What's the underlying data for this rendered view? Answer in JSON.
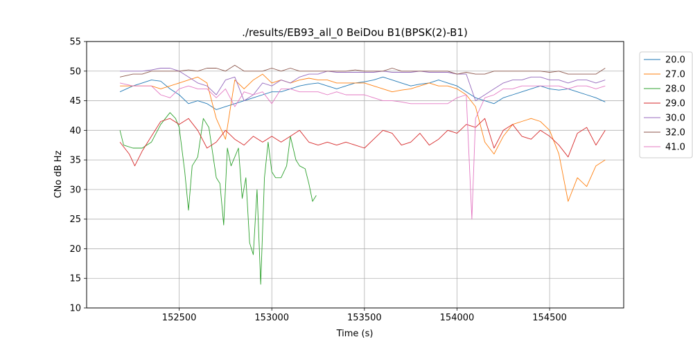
{
  "chart_data": {
    "type": "line",
    "title": "./results/EB93_all_0 BeiDou B1(BPSK(2)-B1)",
    "xlabel": "Time (s)",
    "ylabel": "CNo dB Hz",
    "xlim": [
      152000,
      154900
    ],
    "ylim": [
      10,
      55
    ],
    "xticks": [
      152500,
      153000,
      153500,
      154000,
      154500
    ],
    "yticks": [
      10,
      15,
      20,
      25,
      30,
      35,
      40,
      45,
      50,
      55
    ],
    "grid": true,
    "legend_position": "outside-right-top",
    "series": [
      {
        "name": "20.0",
        "color": "#1f77b4",
        "x": [
          152180,
          152250,
          152300,
          152350,
          152400,
          152450,
          152500,
          152550,
          152600,
          152650,
          152700,
          152750,
          152800,
          152850,
          152900,
          152950,
          153000,
          153050,
          153100,
          153150,
          153200,
          153250,
          153300,
          153350,
          153400,
          153450,
          153500,
          153550,
          153600,
          153650,
          153700,
          153750,
          153800,
          153850,
          153900,
          153950,
          154000,
          154050,
          154100,
          154150,
          154200,
          154250,
          154300,
          154350,
          154400,
          154450,
          154500,
          154550,
          154600,
          154650,
          154700,
          154750,
          154800
        ],
        "values": [
          46.5,
          47.5,
          48.0,
          48.5,
          48.3,
          47.0,
          46.0,
          44.5,
          45.0,
          44.5,
          43.5,
          44.0,
          44.5,
          45.0,
          45.5,
          46.0,
          46.5,
          46.5,
          47.0,
          47.5,
          47.8,
          48.0,
          47.5,
          47.0,
          47.5,
          48.0,
          48.2,
          48.5,
          49.0,
          48.5,
          48.0,
          47.5,
          47.8,
          48.0,
          48.5,
          48.0,
          47.5,
          46.5,
          45.5,
          45.0,
          44.5,
          45.5,
          46.0,
          46.5,
          47.0,
          47.5,
          47.0,
          46.8,
          47.0,
          46.5,
          46.0,
          45.5,
          44.8
        ]
      },
      {
        "name": "27.0",
        "color": "#ff7f0e",
        "x": [
          152180,
          152250,
          152300,
          152350,
          152400,
          152450,
          152500,
          152550,
          152600,
          152650,
          152700,
          152750,
          152800,
          152850,
          152900,
          152950,
          153000,
          153050,
          153100,
          153150,
          153200,
          153250,
          153300,
          153350,
          153400,
          153450,
          153500,
          153550,
          153600,
          153650,
          153700,
          153750,
          153800,
          153850,
          153900,
          153950,
          154000,
          154050,
          154100,
          154150,
          154200,
          154250,
          154300,
          154350,
          154400,
          154450,
          154500,
          154550,
          154600,
          154650,
          154700,
          154750,
          154800
        ],
        "values": [
          47.5,
          47.5,
          47.5,
          47.5,
          47.0,
          47.5,
          48.0,
          48.5,
          49.0,
          48.0,
          42.0,
          38.5,
          48.5,
          47.0,
          48.5,
          49.5,
          48.0,
          48.5,
          48.0,
          48.5,
          48.8,
          48.5,
          48.5,
          48.0,
          48.0,
          48.0,
          48.0,
          47.5,
          47.0,
          46.5,
          46.8,
          47.0,
          47.5,
          48.0,
          47.5,
          47.5,
          47.0,
          46.0,
          44.0,
          38.0,
          36.0,
          39.0,
          41.0,
          41.5,
          42.0,
          41.5,
          40.0,
          36.0,
          28.0,
          32.0,
          30.5,
          34.0,
          35.0
        ]
      },
      {
        "name": "28.0",
        "color": "#2ca02c",
        "x": [
          152180,
          152200,
          152250,
          152300,
          152350,
          152400,
          152450,
          152480,
          152500,
          152530,
          152550,
          152570,
          152600,
          152630,
          152660,
          152700,
          152720,
          152740,
          152760,
          152780,
          152800,
          152820,
          152840,
          152860,
          152880,
          152900,
          152920,
          152940,
          152960,
          152980,
          153000,
          153020,
          153050,
          153080,
          153100,
          153130,
          153150,
          153180,
          153200,
          153220,
          153240
        ],
        "values": [
          40.0,
          37.5,
          37.0,
          37.0,
          38.0,
          41.0,
          43.0,
          42.0,
          40.5,
          33.0,
          26.5,
          34.0,
          35.5,
          42.0,
          40.5,
          32.0,
          31.0,
          24.0,
          37.0,
          34.0,
          35.5,
          37.0,
          28.5,
          32.0,
          21.0,
          19.0,
          30.0,
          14.0,
          32.0,
          38.0,
          33.0,
          32.0,
          32.0,
          34.0,
          39.0,
          35.0,
          34.0,
          33.5,
          31.0,
          28.0,
          29.0
        ]
      },
      {
        "name": "29.0",
        "color": "#d62728",
        "x": [
          152180,
          152230,
          152260,
          152300,
          152350,
          152400,
          152450,
          152500,
          152550,
          152600,
          152650,
          152700,
          152750,
          152800,
          152850,
          152900,
          152950,
          153000,
          153050,
          153100,
          153150,
          153200,
          153250,
          153300,
          153350,
          153400,
          153450,
          153500,
          153550,
          153600,
          153650,
          153700,
          153750,
          153800,
          153850,
          153900,
          153950,
          154000,
          154050,
          154100,
          154150,
          154200,
          154250,
          154300,
          154350,
          154400,
          154450,
          154500,
          154550,
          154600,
          154650,
          154700,
          154750,
          154800
        ],
        "values": [
          38.0,
          36.0,
          34.0,
          36.5,
          39.0,
          41.5,
          42.0,
          41.0,
          42.0,
          40.0,
          37.0,
          38.0,
          40.0,
          38.5,
          37.5,
          39.0,
          38.0,
          39.0,
          38.0,
          39.0,
          40.0,
          38.0,
          37.5,
          38.0,
          37.5,
          38.0,
          37.5,
          37.0,
          38.5,
          40.0,
          39.5,
          37.5,
          38.0,
          39.5,
          37.5,
          38.5,
          40.0,
          39.5,
          41.0,
          40.5,
          42.0,
          37.0,
          40.0,
          41.0,
          39.0,
          38.5,
          40.0,
          39.0,
          37.5,
          35.5,
          39.5,
          40.5,
          37.5,
          40.0
        ]
      },
      {
        "name": "30.0",
        "color": "#9467bd",
        "x": [
          152180,
          152250,
          152300,
          152350,
          152400,
          152450,
          152500,
          152550,
          152600,
          152650,
          152700,
          152750,
          152800,
          152850,
          152900,
          152950,
          153000,
          153050,
          153100,
          153150,
          153200,
          153250,
          153300,
          153350,
          153400,
          153450,
          153500,
          153550,
          153600,
          153650,
          153700,
          153750,
          153800,
          153850,
          153900,
          153950,
          154000,
          154050,
          154100,
          154150,
          154200,
          154250,
          154300,
          154350,
          154400,
          154450,
          154500,
          154550,
          154600,
          154650,
          154700,
          154750,
          154800
        ],
        "values": [
          50.0,
          50.0,
          50.0,
          50.2,
          50.5,
          50.5,
          50.0,
          49.0,
          48.0,
          47.5,
          46.0,
          48.5,
          49.0,
          45.0,
          46.0,
          48.0,
          47.5,
          48.5,
          48.0,
          49.0,
          49.5,
          49.5,
          50.0,
          49.8,
          49.8,
          49.8,
          49.8,
          49.8,
          50.0,
          49.8,
          49.8,
          49.8,
          50.0,
          49.8,
          49.8,
          49.8,
          49.5,
          49.5,
          45.0,
          46.0,
          47.0,
          48.0,
          48.5,
          48.5,
          49.0,
          49.0,
          48.5,
          48.5,
          48.0,
          48.5,
          48.5,
          48.0,
          48.5
        ]
      },
      {
        "name": "32.0",
        "color": "#8c564b",
        "x": [
          152180,
          152250,
          152300,
          152350,
          152400,
          152450,
          152500,
          152550,
          152600,
          152650,
          152700,
          152750,
          152800,
          152850,
          152900,
          152950,
          153000,
          153050,
          153100,
          153150,
          153200,
          153250,
          153300,
          153350,
          153400,
          153450,
          153500,
          153550,
          153600,
          153650,
          153700,
          153750,
          153800,
          153850,
          153900,
          153950,
          154000,
          154050,
          154100,
          154150,
          154200,
          154250,
          154300,
          154350,
          154400,
          154450,
          154500,
          154550,
          154600,
          154650,
          154700,
          154750,
          154800
        ],
        "values": [
          49.0,
          49.5,
          49.5,
          50.0,
          50.0,
          50.0,
          50.0,
          50.2,
          50.0,
          50.5,
          50.5,
          50.0,
          51.0,
          50.0,
          50.0,
          50.0,
          50.5,
          50.0,
          50.5,
          50.0,
          50.0,
          50.0,
          50.0,
          50.0,
          50.0,
          50.2,
          50.0,
          50.0,
          50.0,
          50.5,
          50.0,
          50.0,
          50.0,
          50.0,
          50.0,
          50.0,
          49.5,
          49.8,
          49.5,
          49.5,
          50.0,
          50.0,
          50.0,
          50.0,
          50.0,
          50.0,
          49.8,
          50.0,
          49.5,
          49.5,
          49.5,
          49.5,
          50.5
        ]
      },
      {
        "name": "41.0",
        "color": "#e377c2",
        "x": [
          152180,
          152250,
          152300,
          152350,
          152400,
          152450,
          152500,
          152550,
          152600,
          152650,
          152700,
          152750,
          152800,
          152850,
          152900,
          152950,
          153000,
          153050,
          153100,
          153150,
          153200,
          153250,
          153300,
          153350,
          153400,
          153450,
          153500,
          153550,
          153600,
          153650,
          153700,
          153750,
          153800,
          153850,
          153900,
          153950,
          154000,
          154050,
          154080,
          154100,
          154150,
          154200,
          154250,
          154300,
          154350,
          154400,
          154450,
          154500,
          154550,
          154600,
          154650,
          154700,
          154750,
          154800
        ],
        "values": [
          48.0,
          47.5,
          47.5,
          47.5,
          46.0,
          45.5,
          47.0,
          47.5,
          47.0,
          47.0,
          45.5,
          47.0,
          44.0,
          46.5,
          46.0,
          46.5,
          44.5,
          47.0,
          47.0,
          46.5,
          46.5,
          46.5,
          46.0,
          46.5,
          46.0,
          46.0,
          46.0,
          45.5,
          45.0,
          45.0,
          44.8,
          44.5,
          44.5,
          44.5,
          44.5,
          44.5,
          45.5,
          46.0,
          25.0,
          42.0,
          45.5,
          46.0,
          47.0,
          47.0,
          47.5,
          47.5,
          47.5,
          47.5,
          47.5,
          47.0,
          47.5,
          47.5,
          47.0,
          47.5
        ]
      }
    ]
  }
}
